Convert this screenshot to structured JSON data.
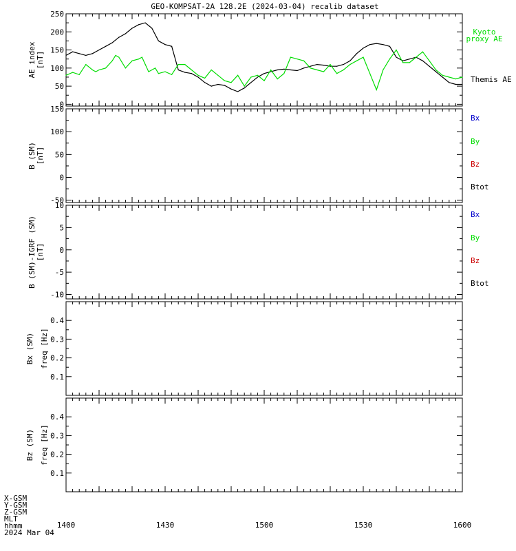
{
  "title": "GEO-KOMPSAT-2A 128.2E (2024-03-04) recalib dataset",
  "colors": {
    "black": "#000000",
    "green": "#00dd00",
    "blue": "#0000cc",
    "red": "#cc0000"
  },
  "footer_labels": [
    "X-GSM",
    "Y-GSM",
    "Z-GSM",
    "MLT",
    "hhmm",
    "2024 Mar 04"
  ],
  "chart_data": [
    {
      "type": "line",
      "panel": "ae",
      "ylabel": [
        "AE index",
        "[nT]"
      ],
      "ylim": [
        -5,
        250
      ],
      "yticks": [
        0,
        50,
        100,
        150,
        200,
        250
      ],
      "xlim": [
        0,
        120
      ],
      "x_tick_labels": [
        "1400",
        "1430",
        "1500",
        "1530",
        "1600"
      ],
      "legend": [
        {
          "text": "Kyoto",
          "color": "#00dd00"
        },
        {
          "text": "proxy AE",
          "color": "#00dd00"
        },
        {
          "text": "Themis AE",
          "color": "#000000"
        }
      ],
      "series": [
        {
          "name": "Themis AE",
          "color": "#000000",
          "x": [
            0,
            2,
            4,
            6,
            8,
            10,
            12,
            14,
            16,
            18,
            20,
            22,
            24,
            26,
            28,
            30,
            32,
            34,
            36,
            38,
            40,
            42,
            44,
            46,
            48,
            50,
            52,
            54,
            56,
            58,
            60,
            62,
            64,
            66,
            68,
            70,
            72,
            74,
            76,
            78,
            80,
            82,
            84,
            86,
            88,
            90,
            92,
            94,
            96,
            98,
            100,
            102,
            104,
            106,
            108,
            110,
            112,
            114,
            116,
            118,
            120
          ],
          "y": [
            135,
            145,
            140,
            135,
            140,
            150,
            160,
            170,
            185,
            195,
            210,
            220,
            225,
            210,
            175,
            165,
            160,
            95,
            88,
            85,
            75,
            60,
            50,
            55,
            52,
            42,
            35,
            45,
            60,
            75,
            85,
            90,
            95,
            97,
            95,
            93,
            100,
            105,
            110,
            108,
            105,
            105,
            110,
            120,
            140,
            155,
            165,
            168,
            165,
            160,
            130,
            120,
            125,
            130,
            120,
            105,
            90,
            75,
            60,
            55,
            55
          ]
        },
        {
          "name": "Kyoto proxy AE",
          "color": "#00dd00",
          "x": [
            0,
            2,
            4,
            6,
            8,
            9,
            10,
            12,
            14,
            15,
            16,
            18,
            20,
            22,
            23,
            24,
            25,
            26,
            27,
            28,
            30,
            32,
            34,
            36,
            38,
            40,
            42,
            44,
            46,
            48,
            50,
            52,
            54,
            56,
            58,
            60,
            62,
            64,
            66,
            68,
            70,
            72,
            74,
            76,
            78,
            80,
            82,
            84,
            86,
            88,
            90,
            92,
            94,
            96,
            98,
            100,
            102,
            104,
            106,
            108,
            110,
            112,
            114,
            116,
            118,
            120
          ],
          "y": [
            80,
            88,
            82,
            110,
            95,
            90,
            95,
            100,
            120,
            135,
            130,
            100,
            120,
            125,
            130,
            110,
            90,
            95,
            100,
            85,
            90,
            82,
            110,
            110,
            95,
            80,
            72,
            95,
            80,
            65,
            60,
            80,
            50,
            75,
            80,
            65,
            95,
            70,
            85,
            130,
            125,
            120,
            100,
            95,
            90,
            110,
            85,
            95,
            110,
            120,
            130,
            85,
            40,
            95,
            125,
            150,
            115,
            115,
            130,
            145,
            120,
            95,
            80,
            75,
            70,
            75
          ]
        }
      ]
    },
    {
      "type": "line",
      "panel": "b",
      "ylabel": [
        "B (SM)",
        "[nT]"
      ],
      "ylim": [
        -55,
        150
      ],
      "yticks": [
        -50,
        0,
        50,
        100,
        150
      ],
      "xlim": [
        0,
        120
      ],
      "legend": [
        {
          "text": "Bx",
          "color": "#0000cc"
        },
        {
          "text": "By",
          "color": "#00dd00"
        },
        {
          "text": "Bz",
          "color": "#cc0000"
        },
        {
          "text": "Btot",
          "color": "#000000"
        }
      ],
      "series": []
    },
    {
      "type": "line",
      "panel": "bigrf",
      "ylabel": [
        "B (SM)-IGRF (SM)",
        "[nT]"
      ],
      "ylim": [
        -11,
        10
      ],
      "yticks": [
        -10,
        -5,
        0,
        5,
        10
      ],
      "xlim": [
        0,
        120
      ],
      "legend": [
        {
          "text": "Bx",
          "color": "#0000cc"
        },
        {
          "text": "By",
          "color": "#00dd00"
        },
        {
          "text": "Bz",
          "color": "#cc0000"
        },
        {
          "text": "Btot",
          "color": "#000000"
        }
      ],
      "series": []
    },
    {
      "type": "heatmap",
      "panel": "bxfreq",
      "ylabel": [
        "Bx (SM)",
        "freq [Hz]"
      ],
      "ylim": [
        0,
        0.5
      ],
      "yticks": [
        0.1,
        0.2,
        0.3,
        0.4
      ],
      "xlim": [
        0,
        120
      ],
      "series": []
    },
    {
      "type": "heatmap",
      "panel": "bzfreq",
      "ylabel": [
        "Bz (SM)",
        "freq [Hz]"
      ],
      "ylim": [
        0,
        0.5
      ],
      "yticks": [
        0.1,
        0.2,
        0.3,
        0.4
      ],
      "xlim": [
        0,
        120
      ],
      "series": []
    }
  ]
}
